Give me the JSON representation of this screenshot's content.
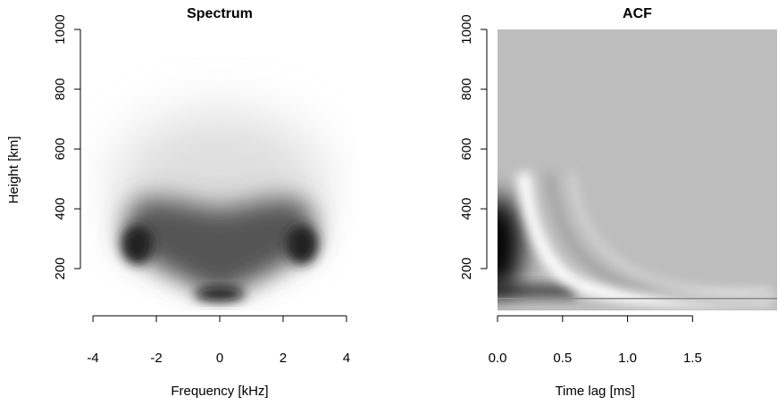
{
  "chart_data": [
    {
      "type": "heatmap",
      "title": "Spectrum",
      "x_label": "Frequency [kHz]",
      "y_label": "Height [km]",
      "xlim": [
        -4.2,
        4.2
      ],
      "ylim": [
        60,
        1000
      ],
      "xticks": [
        -4,
        -2,
        0,
        2,
        4
      ],
      "yticks": [
        200,
        400,
        600,
        800,
        1000
      ]
    },
    {
      "type": "heatmap",
      "title": "ACF",
      "x_label": "Time lag [ms]",
      "xlim": [
        0,
        2.15
      ],
      "ylim": [
        60,
        1000
      ],
      "xticks": [
        {
          "value": 0,
          "label": "0.0"
        },
        0.5,
        {
          "value": 1,
          "label": "1.0"
        },
        1.5
      ],
      "yticks": [
        200,
        400,
        600,
        800,
        1000
      ]
    }
  ]
}
